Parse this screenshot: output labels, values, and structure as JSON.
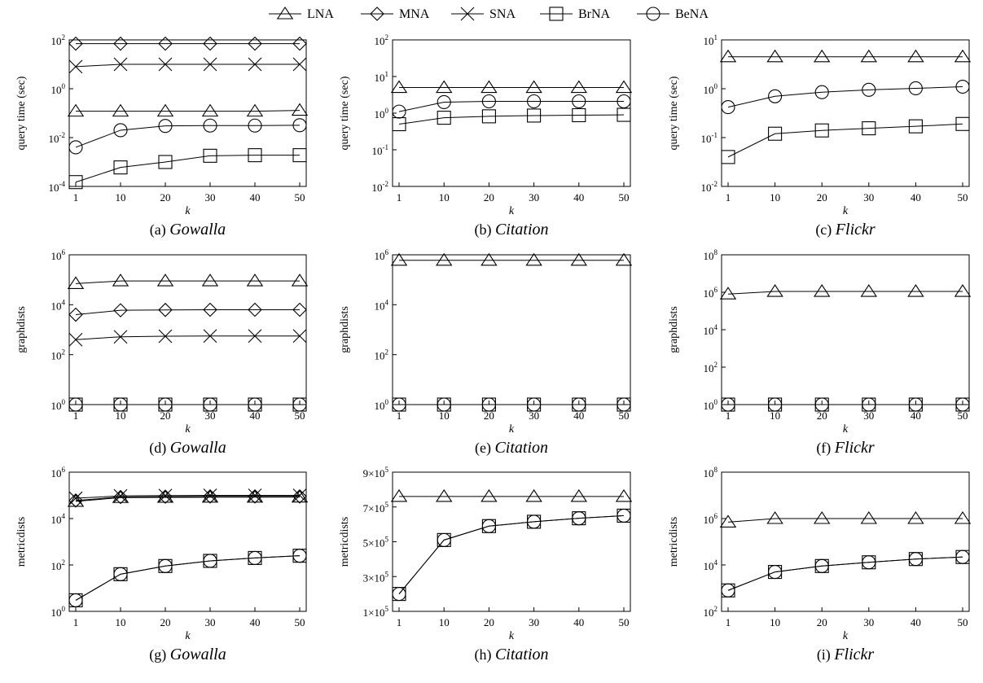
{
  "legend": [
    {
      "name": "LNA",
      "marker": "triangle"
    },
    {
      "name": "MNA",
      "marker": "diamond"
    },
    {
      "name": "SNA",
      "marker": "cross"
    },
    {
      "name": "BrNA",
      "marker": "square"
    },
    {
      "name": "BeNA",
      "marker": "circle"
    }
  ],
  "chart_data": [
    {
      "type": "line",
      "caption_label": "(a)",
      "caption_name": "Gowalla",
      "xlabel": "k",
      "ylabel": "query time (sec)",
      "yscale": "log",
      "ylim": [
        0.0001,
        100
      ],
      "x": [
        1,
        10,
        20,
        30,
        40,
        50
      ],
      "xticks": [
        {
          "v": 1,
          "t": "1"
        },
        {
          "v": 10,
          "t": "10"
        },
        {
          "v": 20,
          "t": "20"
        },
        {
          "v": 30,
          "t": "30"
        },
        {
          "v": 40,
          "t": "40"
        },
        {
          "v": 50,
          "t": "50"
        }
      ],
      "yticks": [
        {
          "v": 0.0001,
          "b": "10",
          "e": "-4"
        },
        {
          "v": 0.01,
          "b": "10",
          "e": "-2"
        },
        {
          "v": 1,
          "b": "10",
          "e": "0"
        },
        {
          "v": 100,
          "b": "10",
          "e": "2"
        }
      ],
      "series": [
        {
          "name": "MNA",
          "marker": "diamond",
          "values": [
            70,
            70,
            70,
            70,
            70,
            70
          ]
        },
        {
          "name": "SNA",
          "marker": "cross",
          "values": [
            8,
            10,
            10,
            10,
            10,
            10
          ]
        },
        {
          "name": "LNA",
          "marker": "triangle",
          "values": [
            0.12,
            0.12,
            0.12,
            0.12,
            0.12,
            0.13
          ]
        },
        {
          "name": "BeNA",
          "marker": "circle",
          "values": [
            0.004,
            0.02,
            0.03,
            0.031,
            0.031,
            0.032
          ]
        },
        {
          "name": "BrNA",
          "marker": "square",
          "values": [
            0.00015,
            0.0006,
            0.001,
            0.0018,
            0.0019,
            0.0019
          ]
        }
      ]
    },
    {
      "type": "line",
      "caption_label": "(b)",
      "caption_name": "Citation",
      "xlabel": "k",
      "ylabel": "query time (sec)",
      "yscale": "log",
      "ylim": [
        0.01,
        100
      ],
      "x": [
        1,
        10,
        20,
        30,
        40,
        50
      ],
      "xticks": [
        {
          "v": 1,
          "t": "1"
        },
        {
          "v": 10,
          "t": "10"
        },
        {
          "v": 20,
          "t": "20"
        },
        {
          "v": 30,
          "t": "30"
        },
        {
          "v": 40,
          "t": "40"
        },
        {
          "v": 50,
          "t": "50"
        }
      ],
      "yticks": [
        {
          "v": 0.01,
          "b": "10",
          "e": "-2"
        },
        {
          "v": 0.1,
          "b": "10",
          "e": "-1"
        },
        {
          "v": 1,
          "b": "10",
          "e": "0"
        },
        {
          "v": 10,
          "b": "10",
          "e": "1"
        },
        {
          "v": 100,
          "b": "10",
          "e": "2"
        }
      ],
      "series": [
        {
          "name": "LNA",
          "marker": "triangle",
          "values": [
            5,
            5,
            5,
            5,
            5,
            5
          ]
        },
        {
          "name": "BeNA",
          "marker": "circle",
          "values": [
            1.1,
            2,
            2.1,
            2.1,
            2.1,
            2.1
          ]
        },
        {
          "name": "BrNA",
          "marker": "square",
          "values": [
            0.5,
            0.75,
            0.82,
            0.86,
            0.88,
            0.9
          ]
        }
      ]
    },
    {
      "type": "line",
      "caption_label": "(c)",
      "caption_name": "Flickr",
      "xlabel": "k",
      "ylabel": "query time (sec)",
      "yscale": "log",
      "ylim": [
        0.01,
        10
      ],
      "x": [
        1,
        10,
        20,
        30,
        40,
        50
      ],
      "xticks": [
        {
          "v": 1,
          "t": "1"
        },
        {
          "v": 10,
          "t": "10"
        },
        {
          "v": 20,
          "t": "20"
        },
        {
          "v": 30,
          "t": "30"
        },
        {
          "v": 40,
          "t": "40"
        },
        {
          "v": 50,
          "t": "50"
        }
      ],
      "yticks": [
        {
          "v": 0.01,
          "b": "10",
          "e": "-2"
        },
        {
          "v": 0.1,
          "b": "10",
          "e": "-1"
        },
        {
          "v": 1,
          "b": "10",
          "e": "0"
        },
        {
          "v": 10,
          "b": "10",
          "e": "1"
        }
      ],
      "series": [
        {
          "name": "LNA",
          "marker": "triangle",
          "values": [
            4.5,
            4.5,
            4.5,
            4.5,
            4.5,
            4.5
          ]
        },
        {
          "name": "BeNA",
          "marker": "circle",
          "values": [
            0.42,
            0.7,
            0.85,
            0.95,
            1.02,
            1.1
          ]
        },
        {
          "name": "BrNA",
          "marker": "square",
          "values": [
            0.04,
            0.12,
            0.14,
            0.155,
            0.17,
            0.19
          ]
        }
      ]
    },
    {
      "type": "line",
      "caption_label": "(d)",
      "caption_name": "Gowalla",
      "xlabel": "k",
      "ylabel": "graphdists",
      "yscale": "log",
      "ylim": [
        1,
        1000000
      ],
      "x": [
        1,
        10,
        20,
        30,
        40,
        50
      ],
      "xticks": [
        {
          "v": 1,
          "t": "1"
        },
        {
          "v": 10,
          "t": "10"
        },
        {
          "v": 20,
          "t": "20"
        },
        {
          "v": 30,
          "t": "30"
        },
        {
          "v": 40,
          "t": "40"
        },
        {
          "v": 50,
          "t": "50"
        }
      ],
      "yticks": [
        {
          "v": 1,
          "b": "10",
          "e": "0"
        },
        {
          "v": 100,
          "b": "10",
          "e": "2"
        },
        {
          "v": 10000,
          "b": "10",
          "e": "4"
        },
        {
          "v": 1000000,
          "b": "10",
          "e": "6"
        }
      ],
      "series": [
        {
          "name": "LNA",
          "marker": "triangle",
          "values": [
            70000,
            90000,
            90000,
            90000,
            90000,
            90000
          ]
        },
        {
          "name": "MNA",
          "marker": "diamond",
          "values": [
            4000,
            6000,
            6200,
            6300,
            6300,
            6300
          ]
        },
        {
          "name": "SNA",
          "marker": "cross",
          "values": [
            400,
            520,
            550,
            560,
            560,
            560
          ]
        },
        {
          "name": "BrNA",
          "marker": "square",
          "values": [
            1,
            1,
            1,
            1,
            1,
            1
          ]
        },
        {
          "name": "BeNA",
          "marker": "circle",
          "values": [
            1,
            1,
            1,
            1,
            1,
            1
          ]
        }
      ]
    },
    {
      "type": "line",
      "caption_label": "(e)",
      "caption_name": "Citation",
      "xlabel": "k",
      "ylabel": "graphdists",
      "yscale": "log",
      "ylim": [
        1,
        1000000
      ],
      "x": [
        1,
        10,
        20,
        30,
        40,
        50
      ],
      "xticks": [
        {
          "v": 1,
          "t": "1"
        },
        {
          "v": 10,
          "t": "10"
        },
        {
          "v": 20,
          "t": "20"
        },
        {
          "v": 30,
          "t": "30"
        },
        {
          "v": 40,
          "t": "40"
        },
        {
          "v": 50,
          "t": "50"
        }
      ],
      "yticks": [
        {
          "v": 1,
          "b": "10",
          "e": "0"
        },
        {
          "v": 100,
          "b": "10",
          "e": "2"
        },
        {
          "v": 10000,
          "b": "10",
          "e": "4"
        },
        {
          "v": 1000000,
          "b": "10",
          "e": "6"
        }
      ],
      "series": [
        {
          "name": "LNA",
          "marker": "triangle",
          "values": [
            600000,
            600000,
            600000,
            600000,
            600000,
            600000
          ]
        },
        {
          "name": "BrNA",
          "marker": "square",
          "values": [
            1,
            1,
            1,
            1,
            1,
            1
          ]
        },
        {
          "name": "BeNA",
          "marker": "circle",
          "values": [
            1,
            1,
            1,
            1,
            1,
            1
          ]
        }
      ]
    },
    {
      "type": "line",
      "caption_label": "(f)",
      "caption_name": "Flickr",
      "xlabel": "k",
      "ylabel": "graphdists",
      "yscale": "log",
      "ylim": [
        1,
        100000000
      ],
      "x": [
        1,
        10,
        20,
        30,
        40,
        50
      ],
      "xticks": [
        {
          "v": 1,
          "t": "1"
        },
        {
          "v": 10,
          "t": "10"
        },
        {
          "v": 20,
          "t": "20"
        },
        {
          "v": 30,
          "t": "30"
        },
        {
          "v": 40,
          "t": "40"
        },
        {
          "v": 50,
          "t": "50"
        }
      ],
      "yticks": [
        {
          "v": 1,
          "b": "10",
          "e": "0"
        },
        {
          "v": 100,
          "b": "10",
          "e": "2"
        },
        {
          "v": 10000,
          "b": "10",
          "e": "4"
        },
        {
          "v": 1000000,
          "b": "10",
          "e": "6"
        },
        {
          "v": 100000000,
          "b": "10",
          "e": "8"
        }
      ],
      "series": [
        {
          "name": "LNA",
          "marker": "triangle",
          "values": [
            800000,
            1100000,
            1100000,
            1100000,
            1100000,
            1100000
          ]
        },
        {
          "name": "BrNA",
          "marker": "square",
          "values": [
            1,
            1,
            1,
            1,
            1,
            1
          ]
        },
        {
          "name": "BeNA",
          "marker": "circle",
          "values": [
            1,
            1,
            1,
            1,
            1,
            1
          ]
        }
      ]
    },
    {
      "type": "line",
      "caption_label": "(g)",
      "caption_name": "Gowalla",
      "xlabel": "k",
      "ylabel": "metricdists",
      "yscale": "log",
      "ylim": [
        1,
        1000000
      ],
      "x": [
        1,
        10,
        20,
        30,
        40,
        50
      ],
      "xticks": [
        {
          "v": 1,
          "t": "1"
        },
        {
          "v": 10,
          "t": "10"
        },
        {
          "v": 20,
          "t": "20"
        },
        {
          "v": 30,
          "t": "30"
        },
        {
          "v": 40,
          "t": "40"
        },
        {
          "v": 50,
          "t": "50"
        }
      ],
      "yticks": [
        {
          "v": 1,
          "b": "10",
          "e": "0"
        },
        {
          "v": 100,
          "b": "10",
          "e": "2"
        },
        {
          "v": 10000,
          "b": "10",
          "e": "4"
        },
        {
          "v": 1000000,
          "b": "10",
          "e": "6"
        }
      ],
      "series": [
        {
          "name": "SNA",
          "marker": "cross",
          "values": [
            75000,
            95000,
            98000,
            100000,
            100000,
            100000
          ]
        },
        {
          "name": "MNA",
          "marker": "diamond",
          "values": [
            60000,
            85000,
            88000,
            90000,
            90000,
            90000
          ]
        },
        {
          "name": "LNA",
          "marker": "triangle",
          "values": [
            55000,
            80000,
            82000,
            83000,
            83000,
            84000
          ]
        },
        {
          "name": "BrNA",
          "marker": "square",
          "values": [
            3,
            40,
            90,
            150,
            200,
            250
          ]
        },
        {
          "name": "BeNA",
          "marker": "circle",
          "values": [
            3,
            40,
            90,
            150,
            200,
            250
          ]
        }
      ]
    },
    {
      "type": "line",
      "caption_label": "(h)",
      "caption_name": "Citation",
      "xlabel": "k",
      "ylabel": "metricdists",
      "yscale": "linear",
      "ylim": [
        100000,
        900000
      ],
      "x": [
        1,
        10,
        20,
        30,
        40,
        50
      ],
      "xticks": [
        {
          "v": 1,
          "t": "1"
        },
        {
          "v": 10,
          "t": "10"
        },
        {
          "v": 20,
          "t": "20"
        },
        {
          "v": 30,
          "t": "30"
        },
        {
          "v": 40,
          "t": "40"
        },
        {
          "v": 50,
          "t": "50"
        }
      ],
      "yticks": [
        {
          "v": 100000,
          "b": "1×10",
          "e": "5"
        },
        {
          "v": 300000,
          "b": "3×10",
          "e": "5"
        },
        {
          "v": 500000,
          "b": "5×10",
          "e": "5"
        },
        {
          "v": 700000,
          "b": "7×10",
          "e": "5"
        },
        {
          "v": 900000,
          "b": "9×10",
          "e": "5"
        }
      ],
      "series": [
        {
          "name": "LNA",
          "marker": "triangle",
          "values": [
            760000,
            760000,
            760000,
            760000,
            760000,
            760000
          ]
        },
        {
          "name": "BrNA",
          "marker": "square",
          "values": [
            200000,
            510000,
            590000,
            615000,
            635000,
            650000
          ]
        },
        {
          "name": "BeNA",
          "marker": "circle",
          "values": [
            200000,
            510000,
            590000,
            615000,
            635000,
            650000
          ]
        }
      ]
    },
    {
      "type": "line",
      "caption_label": "(i)",
      "caption_name": "Flickr",
      "xlabel": "k",
      "ylabel": "metricdists",
      "yscale": "log",
      "ylim": [
        100,
        100000000
      ],
      "x": [
        1,
        10,
        20,
        30,
        40,
        50
      ],
      "xticks": [
        {
          "v": 1,
          "t": "1"
        },
        {
          "v": 10,
          "t": "10"
        },
        {
          "v": 20,
          "t": "20"
        },
        {
          "v": 30,
          "t": "30"
        },
        {
          "v": 40,
          "t": "40"
        },
        {
          "v": 50,
          "t": "50"
        }
      ],
      "yticks": [
        {
          "v": 100,
          "b": "10",
          "e": "2"
        },
        {
          "v": 10000,
          "b": "10",
          "e": "4"
        },
        {
          "v": 1000000,
          "b": "10",
          "e": "6"
        },
        {
          "v": 100000000,
          "b": "10",
          "e": "8"
        }
      ],
      "series": [
        {
          "name": "LNA",
          "marker": "triangle",
          "values": [
            700000,
            1000000,
            1000000,
            1000000,
            1000000,
            1000000
          ]
        },
        {
          "name": "BrNA",
          "marker": "square",
          "values": [
            800,
            5000,
            9000,
            13000,
            18000,
            22000
          ]
        },
        {
          "name": "BeNA",
          "marker": "circle",
          "values": [
            800,
            5000,
            9000,
            13000,
            18000,
            22000
          ]
        }
      ]
    }
  ]
}
